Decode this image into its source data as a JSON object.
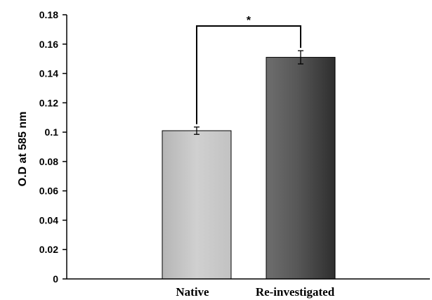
{
  "chart_data": {
    "type": "bar",
    "categories": [
      "Native",
      "Re-investigated"
    ],
    "values": [
      0.101,
      0.151
    ],
    "errors": [
      0.0025,
      0.0045
    ],
    "ylabel": "O.D at 585 nm",
    "xlabel": "",
    "ylim": [
      0,
      0.18
    ],
    "yticks": [
      0,
      0.02,
      0.04,
      0.06,
      0.08,
      0.1,
      0.12,
      0.14,
      0.16,
      0.18
    ],
    "ytick_labels": [
      "0",
      "0.02",
      "0.04",
      "0.06",
      "0.08",
      "0.1",
      "0.12",
      "0.14",
      "0.16",
      "0.18"
    ],
    "grid": false,
    "significance": {
      "label": "*",
      "between": [
        0,
        1
      ]
    }
  }
}
